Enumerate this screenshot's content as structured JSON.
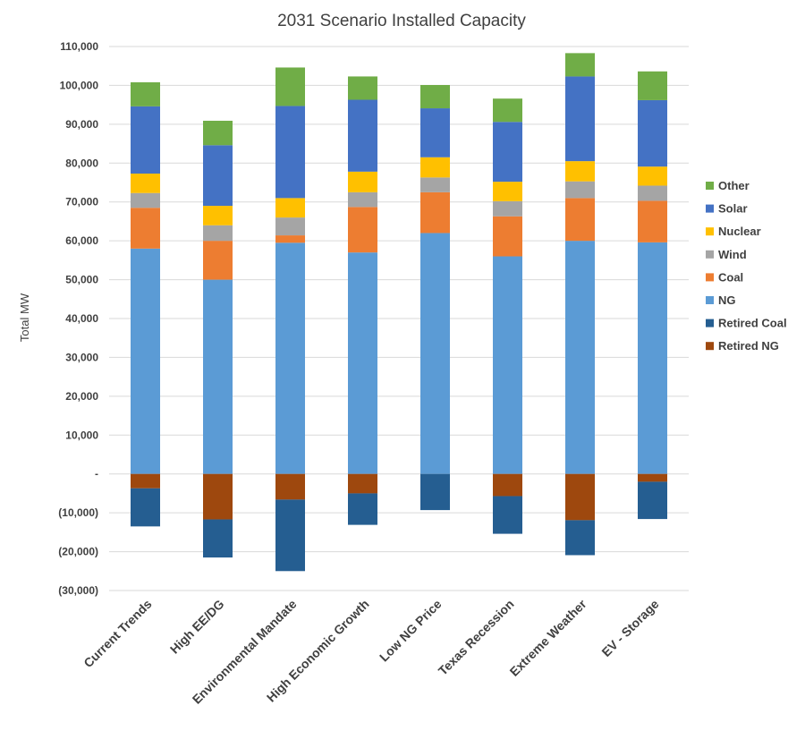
{
  "chart_data": {
    "type": "bar",
    "stacked": true,
    "title": "2031 Scenario Installed Capacity",
    "ylabel": "Total MW",
    "xlabel": "",
    "ylim": [
      -30000,
      110000
    ],
    "yticks": [
      110000,
      100000,
      90000,
      80000,
      70000,
      60000,
      50000,
      40000,
      30000,
      20000,
      10000,
      0,
      -10000,
      -20000,
      -30000
    ],
    "ytick_labels": [
      "110,000",
      "100,000",
      "90,000",
      "80,000",
      "70,000",
      "60,000",
      "50,000",
      "40,000",
      "30,000",
      "20,000",
      "10,000",
      "-",
      "(10,000)",
      "(20,000)",
      "(30,000)"
    ],
    "grid": true,
    "legend_position": "right",
    "categories": [
      "Current Trends",
      "High EE/DG",
      "Environmental Mandate",
      "High Economic Growth",
      "Low NG Price",
      "Texas Recession",
      "Extreme Weather",
      "EV - Storage"
    ],
    "series": [
      {
        "name": "NG",
        "color": "#5b9bd5",
        "values": [
          58000,
          50000,
          59500,
          57000,
          62000,
          56000,
          60000,
          59600
        ]
      },
      {
        "name": "Coal",
        "color": "#ed7d31",
        "values": [
          10500,
          10000,
          1900,
          11700,
          10500,
          10300,
          11000,
          10700
        ]
      },
      {
        "name": "Wind",
        "color": "#a5a5a5",
        "values": [
          3800,
          4000,
          4600,
          3800,
          3800,
          3900,
          4300,
          3900
        ]
      },
      {
        "name": "Nuclear",
        "color": "#ffc000",
        "values": [
          5000,
          5000,
          5000,
          5300,
          5200,
          5000,
          5200,
          4900
        ]
      },
      {
        "name": "Solar",
        "color": "#4472c4",
        "values": [
          17300,
          15600,
          23700,
          18500,
          12600,
          15400,
          21800,
          17100
        ]
      },
      {
        "name": "Other",
        "color": "#70ad47",
        "values": [
          6200,
          6300,
          9900,
          6000,
          6000,
          6000,
          6000,
          7400
        ]
      },
      {
        "name": "Retired NG",
        "color": "#9e480e",
        "values": [
          -3700,
          -11700,
          -6600,
          -5000,
          0,
          -5700,
          -11900,
          -2000
        ]
      },
      {
        "name": "Retired Coal",
        "color": "#255e91",
        "values": [
          -9800,
          -9800,
          -18400,
          -8100,
          -9300,
          -9700,
          -9000,
          -9600
        ]
      }
    ],
    "legend_order": [
      "Other",
      "Solar",
      "Nuclear",
      "Wind",
      "Coal",
      "NG",
      "Retired Coal",
      "Retired NG"
    ]
  }
}
